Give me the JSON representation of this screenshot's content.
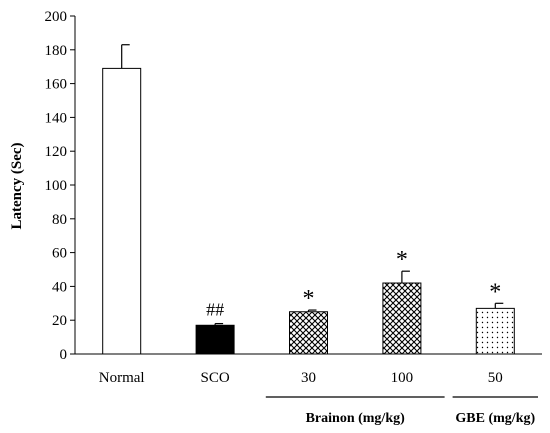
{
  "chart_data": {
    "type": "bar",
    "ylabel": "Latency (Sec)",
    "xlabel": "",
    "title": "",
    "ylim": [
      0,
      200
    ],
    "yticks": [
      0,
      20,
      40,
      60,
      80,
      100,
      120,
      140,
      160,
      180,
      200
    ],
    "grid": false,
    "categories": [
      "Normal",
      "SCO",
      "30",
      "100",
      "50"
    ],
    "values": [
      169,
      17,
      25,
      42,
      27
    ],
    "errors": [
      14,
      1,
      1,
      7,
      3
    ],
    "fills": [
      "white",
      "black",
      "crosshatch",
      "crosshatch",
      "dots"
    ],
    "annotations": [
      "",
      "##",
      "*",
      "*",
      "*"
    ],
    "groups": [
      {
        "label": "Brainon (mg/kg)",
        "categories": [
          "30",
          "100"
        ]
      },
      {
        "label": "GBE (mg/kg)",
        "categories": [
          "50"
        ]
      }
    ]
  }
}
